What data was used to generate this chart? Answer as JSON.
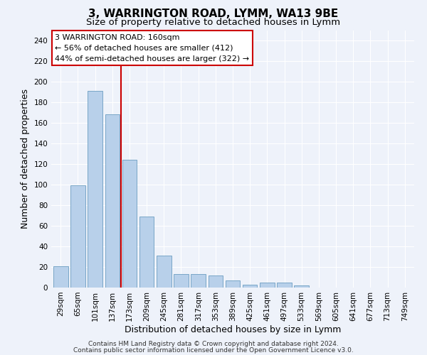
{
  "title_line1": "3, WARRINGTON ROAD, LYMM, WA13 9BE",
  "title_line2": "Size of property relative to detached houses in Lymm",
  "xlabel": "Distribution of detached houses by size in Lymm",
  "ylabel": "Number of detached properties",
  "categories": [
    "29sqm",
    "65sqm",
    "101sqm",
    "137sqm",
    "173sqm",
    "209sqm",
    "245sqm",
    "281sqm",
    "317sqm",
    "353sqm",
    "389sqm",
    "425sqm",
    "461sqm",
    "497sqm",
    "533sqm",
    "569sqm",
    "605sqm",
    "641sqm",
    "677sqm",
    "713sqm",
    "749sqm"
  ],
  "values": [
    21,
    99,
    191,
    168,
    124,
    69,
    31,
    13,
    13,
    12,
    7,
    3,
    5,
    5,
    2,
    0,
    0,
    0,
    0,
    0,
    0
  ],
  "bar_color": "#b8d0ea",
  "bar_edge_color": "#6a9cc0",
  "vline_x_index": 3.5,
  "vline_color": "#cc0000",
  "annotation_line1": "3 WARRINGTON ROAD: 160sqm",
  "annotation_line2": "← 56% of detached houses are smaller (412)",
  "annotation_line3": "44% of semi-detached houses are larger (322) →",
  "ylim": [
    0,
    250
  ],
  "yticks": [
    0,
    20,
    40,
    60,
    80,
    100,
    120,
    140,
    160,
    180,
    200,
    220,
    240
  ],
  "footer_line1": "Contains HM Land Registry data © Crown copyright and database right 2024.",
  "footer_line2": "Contains public sector information licensed under the Open Government Licence v3.0.",
  "background_color": "#eef2fa",
  "grid_color": "#ffffff",
  "title1_fontsize": 11,
  "title2_fontsize": 9.5,
  "axis_label_fontsize": 9,
  "tick_fontsize": 7.5,
  "annotation_fontsize": 8,
  "footer_fontsize": 6.5
}
